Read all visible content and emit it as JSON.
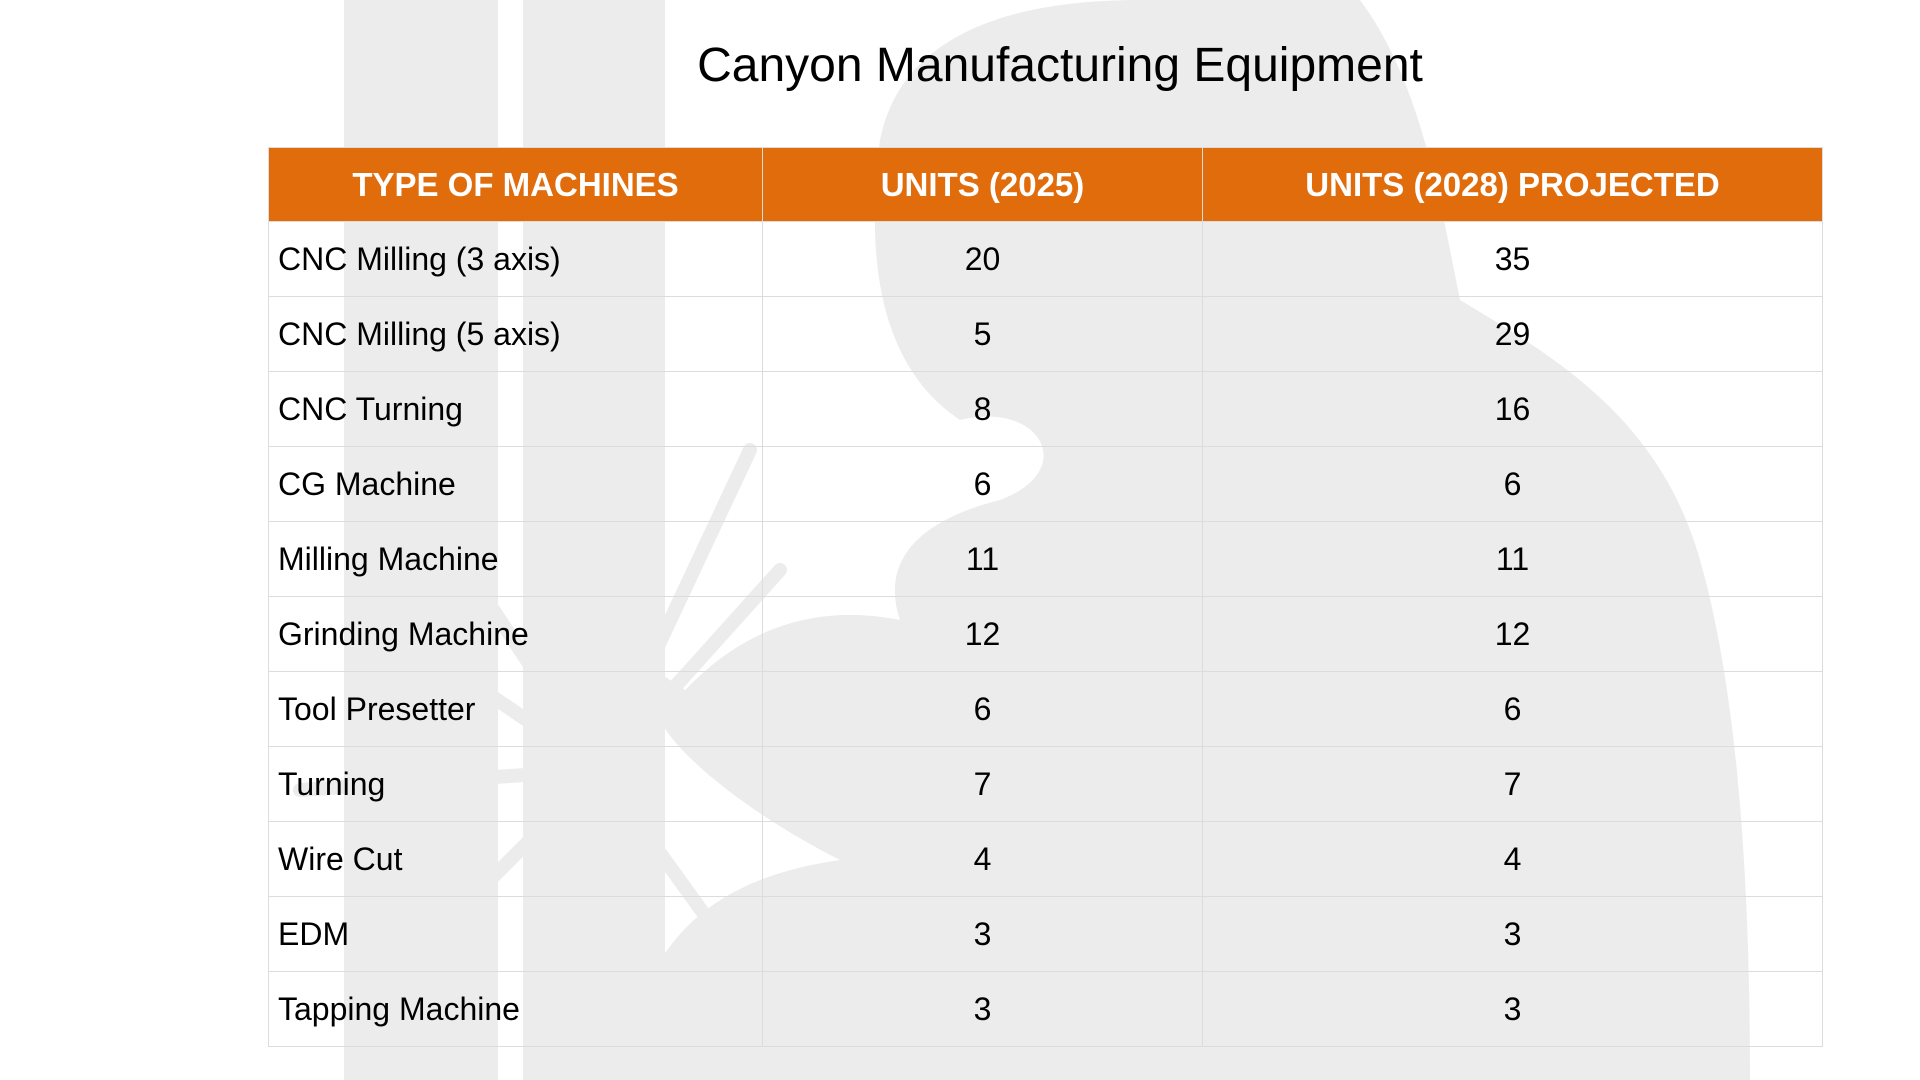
{
  "title": "Canyon Manufacturing Equipment",
  "colors": {
    "header_bg": "#e06c0c",
    "header_text": "#ffffff",
    "watermark": "#ececec"
  },
  "table": {
    "headers": [
      "TYPE OF MACHINES",
      "UNITS (2025)",
      "UNITS (2028) PROJECTED"
    ],
    "rows": [
      [
        "CNC Milling (3 axis)",
        "20",
        "35"
      ],
      [
        "CNC Milling (5 axis)",
        "5",
        "29"
      ],
      [
        "CNC Turning",
        "8",
        "16"
      ],
      [
        "CG Machine",
        "6",
        "6"
      ],
      [
        "Milling Machine",
        "11",
        "11"
      ],
      [
        "Grinding Machine",
        "12",
        "12"
      ],
      [
        "Tool Presetter",
        "6",
        "6"
      ],
      [
        "Turning",
        "7",
        "7"
      ],
      [
        "Wire Cut",
        "4",
        "4"
      ],
      [
        "EDM",
        "3",
        "3"
      ],
      [
        "Tapping Machine",
        "3",
        "3"
      ]
    ]
  }
}
